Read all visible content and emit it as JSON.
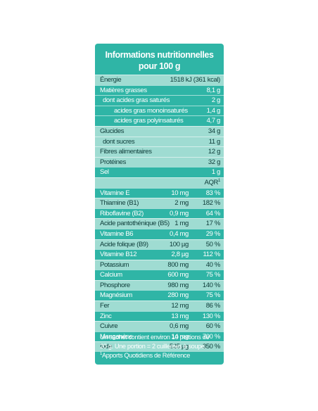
{
  "title_line1": "Informations nutritionnelles",
  "title_line2": "pour 100 g",
  "macros": [
    {
      "label": "Énergie",
      "value": "1518 kJ (361 kcal)",
      "indent": 0,
      "shade": "light"
    },
    {
      "label": "Matières grasses",
      "value": "8,1 g",
      "indent": 0,
      "shade": "dark"
    },
    {
      "label": "dont acides gras saturés",
      "value": "2 g",
      "indent": 1,
      "shade": "dark"
    },
    {
      "label": "acides gras monoinsaturés",
      "value": "1,4 g",
      "indent": 2,
      "shade": "dark"
    },
    {
      "label": "acides gras polyinsaturés",
      "value": "4,7 g",
      "indent": 2,
      "shade": "dark"
    },
    {
      "label": "Glucides",
      "value": "34 g",
      "indent": 0,
      "shade": "light"
    },
    {
      "label": "dont sucres",
      "value": "11 g",
      "indent": 1,
      "shade": "light"
    },
    {
      "label": "Fibres alimentaires",
      "value": "12 g",
      "indent": 0,
      "shade": "light"
    },
    {
      "label": "Protéines",
      "value": "32 g",
      "indent": 0,
      "shade": "light"
    },
    {
      "label": "Sel",
      "value": "1 g",
      "indent": 0,
      "shade": "dark"
    }
  ],
  "aqr_header": "AQR",
  "aqr_sup": "1",
  "micros": [
    {
      "label": "Vitamine E",
      "qty": "10 mg",
      "pct": "83 %",
      "shade": "dark"
    },
    {
      "label": "Thiamine (B1)",
      "qty": "2 mg",
      "pct": "182 %",
      "shade": "light"
    },
    {
      "label": "Riboflavine (B2)",
      "qty": "0,9 mg",
      "pct": "64 %",
      "shade": "dark"
    },
    {
      "label": "Acide pantothénique (B5)",
      "qty": "1 mg",
      "pct": "17 %",
      "shade": "light"
    },
    {
      "label": "Vitamine B6",
      "qty": "0,4 mg",
      "pct": "29 %",
      "shade": "dark"
    },
    {
      "label": "Acide folique (B9)",
      "qty": "100 µg",
      "pct": "50 %",
      "shade": "light"
    },
    {
      "label": "Vitamine B12",
      "qty": "2,8 µg",
      "pct": "112 %",
      "shade": "dark"
    },
    {
      "label": "Potassium",
      "qty": "800 mg",
      "pct": "40 %",
      "shade": "light"
    },
    {
      "label": "Calcium",
      "qty": "600 mg",
      "pct": "75 %",
      "shade": "dark"
    },
    {
      "label": "Phosphore",
      "qty": "980 mg",
      "pct": "140 %",
      "shade": "light"
    },
    {
      "label": "Magnésium",
      "qty": "280 mg",
      "pct": "75 %",
      "shade": "dark"
    },
    {
      "label": "Fer",
      "qty": "12 mg",
      "pct": "86 %",
      "shade": "light"
    },
    {
      "label": "Zinc",
      "qty": "13 mg",
      "pct": "130 %",
      "shade": "dark"
    },
    {
      "label": "Cuivre",
      "qty": "0,6 mg",
      "pct": "60 %",
      "shade": "light"
    },
    {
      "label": "Manganèse",
      "qty": "14 mg",
      "pct": "700 %",
      "shade": "dark"
    },
    {
      "label": "Iode",
      "qty": "525 µg",
      "pct": "350 %",
      "shade": "light"
    }
  ],
  "footer": {
    "line1": "Un sachet contient environ 10 portions de",
    "line2": "20 g. Une portion =  2 cuillerées à soupe.",
    "footnote_sup": "1",
    "footnote": "Apports Quotidiens de Référence"
  },
  "colors": {
    "panel": "#2fb5a6",
    "light_row": "#9fdcd2",
    "text_dark": "#0d3b38",
    "text_light": "#ffffff"
  }
}
